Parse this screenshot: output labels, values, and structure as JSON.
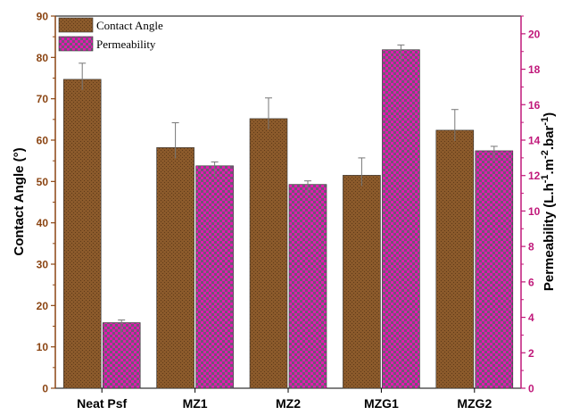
{
  "chart_data": {
    "type": "bar",
    "categories": [
      "Neat Psf",
      "MZ1",
      "MZ2",
      "MZG1",
      "MZG2"
    ],
    "series": [
      {
        "name": "Contact Angle",
        "axis": "left",
        "values": [
          74.7,
          58.2,
          65.2,
          51.5,
          62.4
        ],
        "errors": [
          3.9,
          6.0,
          5.0,
          4.2,
          5.0
        ],
        "color": "#8b5a2b"
      },
      {
        "name": "Permeability",
        "axis": "right",
        "values": [
          3.7,
          12.55,
          11.5,
          19.1,
          13.4
        ],
        "errors": [
          0.15,
          0.22,
          0.2,
          0.27,
          0.25
        ],
        "color": "#e01bb0"
      }
    ],
    "ylabel": "Contact Angle (°)",
    "y2label": "Permeability (L.h-1.m-2.bar-1)",
    "y2label_parts": {
      "base1": "Permeability (L.h",
      "sup1": "-1",
      "base2": ".m",
      "sup2": "-2",
      "base3": ".bar",
      "sup3": "-1",
      "base4": ")"
    },
    "ylim": [
      0,
      90
    ],
    "y2lim": [
      0,
      21
    ],
    "yticks": [
      0,
      10,
      20,
      30,
      40,
      50,
      60,
      70,
      80,
      90
    ],
    "y2ticks": [
      0,
      2,
      4,
      6,
      8,
      10,
      12,
      14,
      16,
      18,
      20
    ],
    "legend_position": "top-left",
    "left_axis_color": "#8b4513",
    "right_axis_color": "#c0187a"
  }
}
